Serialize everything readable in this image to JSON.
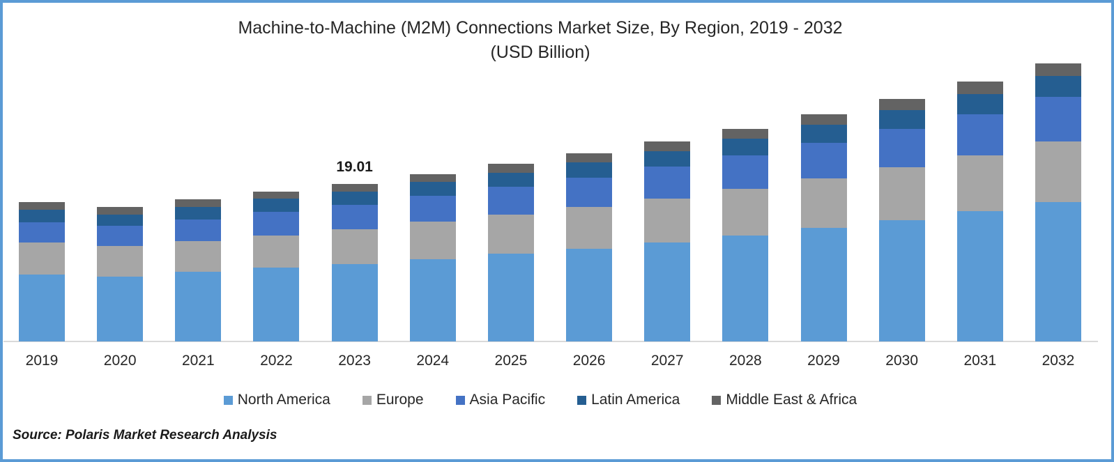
{
  "chart_data": {
    "type": "bar",
    "stacked": true,
    "title": "Machine-to-Machine (M2M) Connections Market Size, By Region, 2019 - 2032",
    "subtitle": "(USD Billion)",
    "unit": "USD Billion",
    "categories": [
      "2019",
      "2020",
      "2021",
      "2022",
      "2023",
      "2024",
      "2025",
      "2026",
      "2027",
      "2028",
      "2029",
      "2030",
      "2031",
      "2032"
    ],
    "series": [
      {
        "name": "North America",
        "color": "#5B9BD5",
        "values": [
          8.1,
          7.81,
          8.38,
          8.87,
          9.35,
          9.94,
          10.61,
          11.21,
          11.96,
          12.81,
          13.66,
          14.64,
          15.69,
          16.85
        ]
      },
      {
        "name": "Europe",
        "color": "#A6A6A6",
        "values": [
          3.85,
          3.67,
          3.72,
          3.94,
          4.22,
          4.5,
          4.67,
          4.98,
          5.29,
          5.63,
          5.97,
          6.34,
          6.76,
          7.3
        ]
      },
      {
        "name": "Asia Pacific",
        "color": "#4472C4",
        "values": [
          2.45,
          2.44,
          2.59,
          2.82,
          2.93,
          3.11,
          3.38,
          3.57,
          3.82,
          4.0,
          4.36,
          4.65,
          4.96,
          5.33
        ]
      },
      {
        "name": "Latin America",
        "color": "#255E91",
        "values": [
          1.5,
          1.41,
          1.54,
          1.57,
          1.58,
          1.66,
          1.7,
          1.86,
          1.9,
          2.05,
          2.11,
          2.31,
          2.45,
          2.51
        ]
      },
      {
        "name": "Middle East & Africa",
        "color": "#636363",
        "values": [
          0.92,
          0.85,
          0.88,
          0.9,
          0.93,
          0.97,
          1.05,
          1.07,
          1.15,
          1.17,
          1.27,
          1.33,
          1.47,
          1.54
        ]
      }
    ],
    "data_labels": [
      {
        "category": "2023",
        "value": "19.01"
      }
    ],
    "ylim": [
      0,
      35
    ],
    "grid": false,
    "legend_position": "bottom"
  },
  "footer": {
    "source": "Source: Polaris Market Research Analysis"
  },
  "frame": {
    "border_color": "#5B9BD5",
    "axis_line_color": "#D9D9D9",
    "background": "#FFFFFF"
  }
}
